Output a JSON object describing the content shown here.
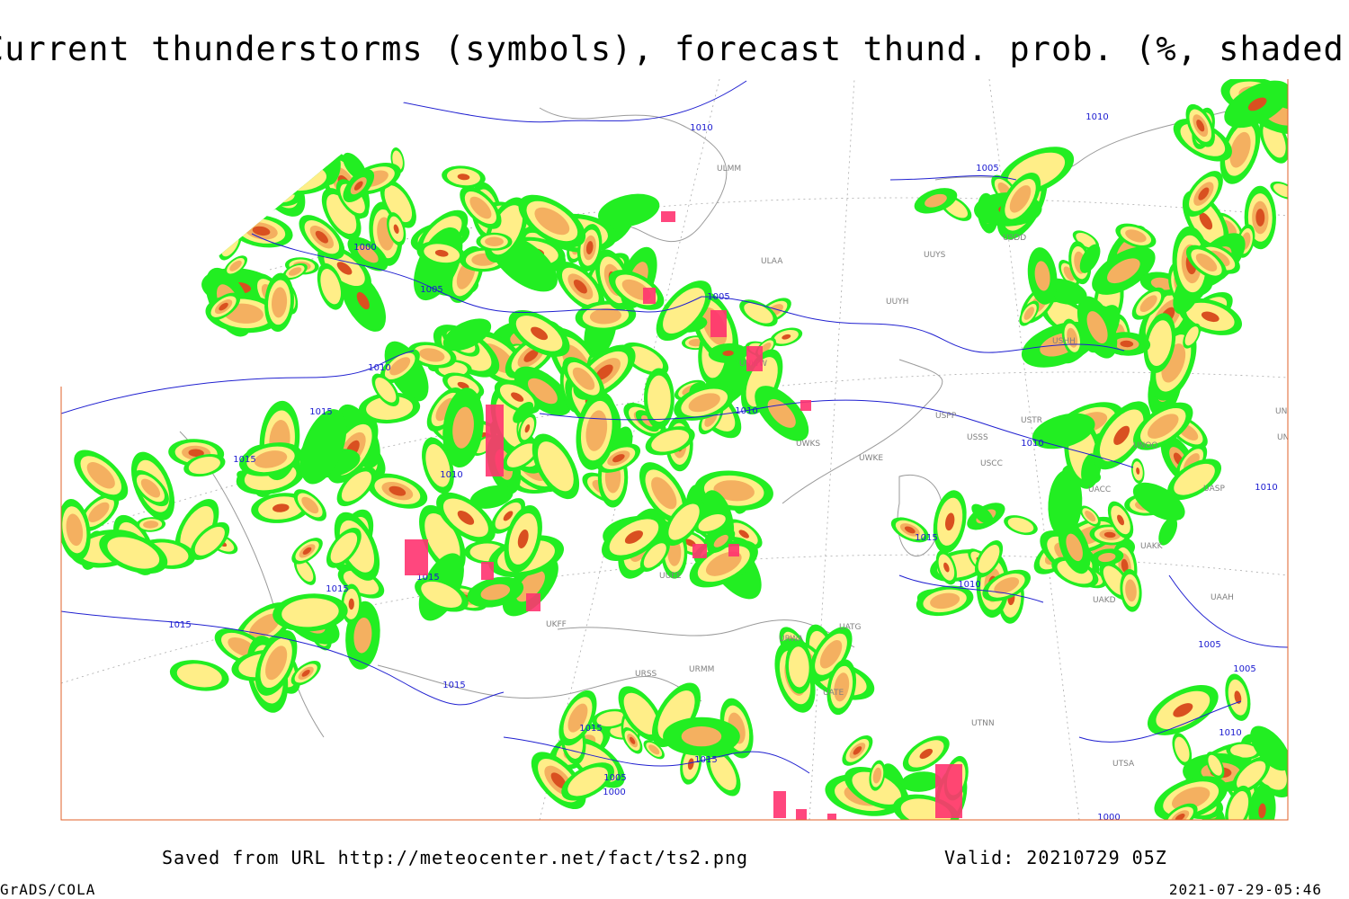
{
  "header": {
    "title": "Current thunderstorms (symbols), forecast thund. prob. (%, shaded)"
  },
  "map": {
    "isobar_labels": [
      "1010",
      "1005",
      "1000",
      "1010",
      "1015",
      "1015",
      "1010",
      "1005",
      "1010",
      "1010",
      "1010",
      "1015",
      "1015",
      "1015",
      "1010",
      "1005",
      "1015",
      "1015",
      "1010",
      "1005",
      "1005",
      "1010",
      "1015",
      "1005",
      "1000",
      "1015",
      "1000"
    ],
    "station_labels": [
      "ULMM",
      "ULAA",
      "UUYH",
      "UUYS",
      "USDD",
      "USHH",
      "UUWW",
      "UWKS",
      "UWKE",
      "USPP",
      "USSS",
      "USTR",
      "USCC",
      "UNOO",
      "UACC",
      "UASP",
      "UAKK",
      "UAKD",
      "UATG",
      "URWA",
      "UATE",
      "UTNN",
      "UTSA",
      "UUEE",
      "URSS",
      "URMM",
      "UKFF",
      "UAAH",
      "UNNT",
      "UNBB"
    ]
  },
  "footer": {
    "saved": "Saved from URL http://meteocenter.net/fact/ts2.png",
    "valid": "Valid: 20210729 05Z",
    "software": "GrADS/COLA",
    "timestamp": "2021-07-29-05:46"
  }
}
